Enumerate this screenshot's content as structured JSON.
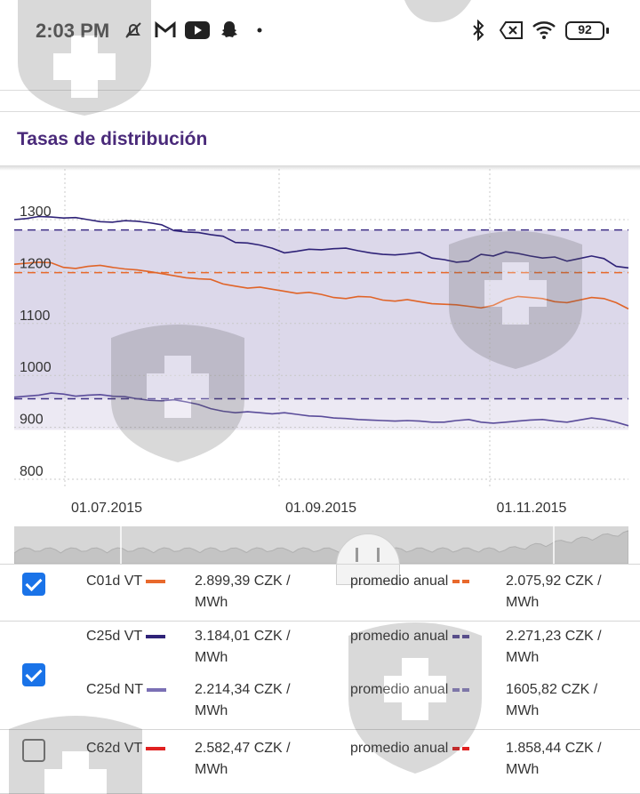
{
  "status_bar": {
    "time": "2:03 PM",
    "battery": "92",
    "icons": [
      "mute-bell-icon",
      "gmail-icon",
      "youtube-icon",
      "snapchat-icon",
      "dot-icon",
      "bluetooth-icon",
      "no-sim-icon",
      "wifi-icon",
      "battery-icon"
    ]
  },
  "section": {
    "title": "Tasas de distribución"
  },
  "chart_data": {
    "type": "line",
    "title": "",
    "x_ticks": [
      "01.07.2015",
      "01.09.2015",
      "01.11.2015"
    ],
    "y_ticks": [
      "1300",
      "1200",
      "1100",
      "1000",
      "900",
      "800"
    ],
    "ylim": [
      800,
      1300
    ],
    "grid": true,
    "band": {
      "from": 955,
      "to": 1280,
      "color": "#dcd8ea"
    },
    "reference_lines": [
      {
        "value": 1280,
        "color": "#3d2e85"
      },
      {
        "value": 1198,
        "color": "#e8692c"
      },
      {
        "value": 955,
        "color": "#3d2e85"
      }
    ],
    "series": [
      {
        "color": "#2f2378",
        "values": [
          1300,
          1302,
          1306,
          1305,
          1303,
          1304,
          1300,
          1296,
          1295,
          1298,
          1297,
          1294,
          1290,
          1279,
          1276,
          1275,
          1271,
          1268,
          1256,
          1255,
          1251,
          1245,
          1236,
          1239,
          1243,
          1242,
          1244,
          1245,
          1240,
          1236,
          1233,
          1232,
          1234,
          1237,
          1226,
          1223,
          1218,
          1220,
          1233,
          1230,
          1238,
          1235,
          1230,
          1226,
          1228,
          1220,
          1225,
          1230,
          1225,
          1210,
          1207
        ]
      },
      {
        "color": "#e06428",
        "values": [
          1214,
          1216,
          1218,
          1217,
          1208,
          1206,
          1210,
          1212,
          1208,
          1205,
          1203,
          1200,
          1196,
          1192,
          1188,
          1186,
          1185,
          1176,
          1172,
          1168,
          1170,
          1166,
          1162,
          1158,
          1160,
          1156,
          1150,
          1148,
          1152,
          1151,
          1145,
          1143,
          1146,
          1142,
          1138,
          1137,
          1136,
          1133,
          1130,
          1135,
          1146,
          1152,
          1150,
          1148,
          1142,
          1140,
          1145,
          1150,
          1148,
          1140,
          1128
        ]
      },
      {
        "color": "#5a4c9a",
        "values": [
          958,
          960,
          962,
          966,
          964,
          960,
          962,
          963,
          960,
          959,
          955,
          952,
          951,
          953,
          949,
          944,
          936,
          931,
          928,
          930,
          928,
          926,
          928,
          925,
          922,
          921,
          918,
          917,
          915,
          914,
          913,
          912,
          913,
          912,
          910,
          910,
          913,
          915,
          910,
          908,
          910,
          912,
          914,
          915,
          912,
          910,
          914,
          918,
          915,
          910,
          903
        ]
      }
    ]
  },
  "legend_rows": [
    {
      "checked": true,
      "entries": [
        {
          "name": "C01d VT",
          "color": "#e8692c",
          "price": "2.899,39 CZK /",
          "unit": "MWh",
          "avg_label": "promedio anual",
          "avg_price": "2.075,92 CZK /",
          "avg_unit": "MWh"
        }
      ]
    },
    {
      "checked": true,
      "entries": [
        {
          "name": "C25d VT",
          "color": "#2f2378",
          "price": "3.184,01 CZK /",
          "unit": "MWh",
          "avg_label": "promedio anual",
          "avg_price": "2.271,23 CZK /",
          "avg_unit": "MWh"
        },
        {
          "name": "C25d NT",
          "color": "#7b70b5",
          "price": "2.214,34 CZK /",
          "unit": "MWh",
          "avg_label": "promedio anual",
          "avg_price": "1605,82 CZK /",
          "avg_unit": "MWh"
        }
      ]
    },
    {
      "checked": false,
      "entries": [
        {
          "name": "C62d VT",
          "color": "#e02020",
          "price": "2.582,47 CZK /",
          "unit": "MWh",
          "avg_label": "promedio anual",
          "avg_price": "1.858,44 CZK /",
          "avg_unit": "MWh"
        }
      ]
    }
  ]
}
